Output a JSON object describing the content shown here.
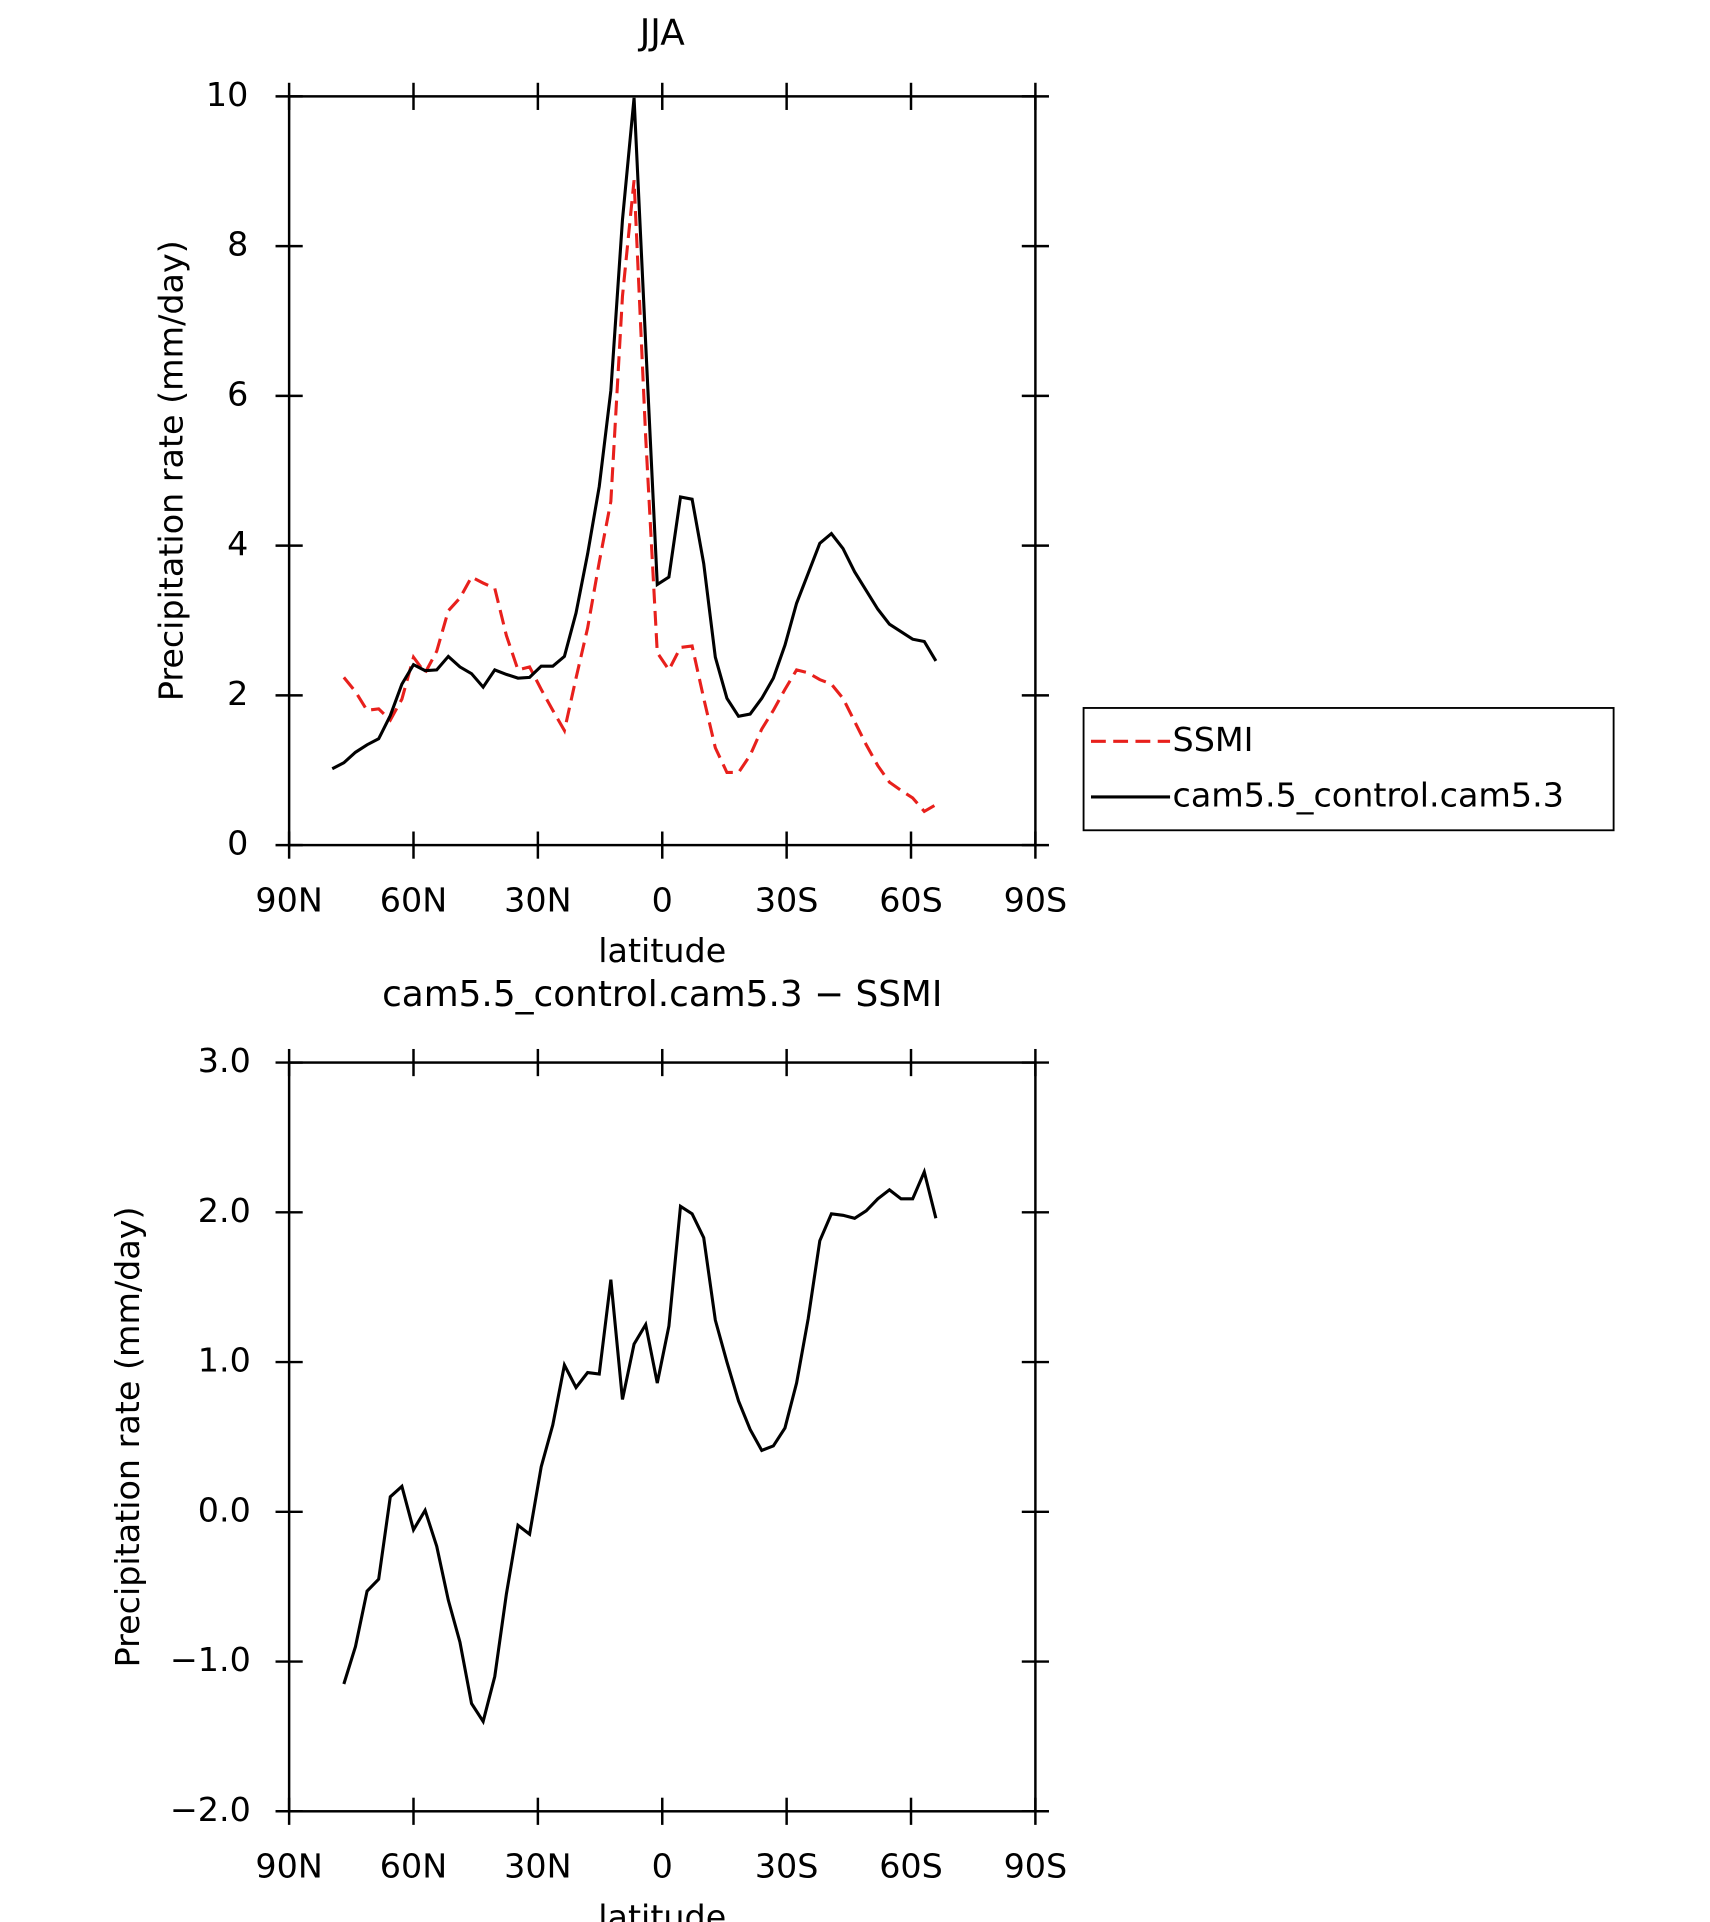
{
  "chart_data": [
    {
      "type": "line",
      "title": "JJA",
      "xlabel": "latitude",
      "ylabel": "Precipitation rate (mm/day)",
      "x": [
        79.6,
        76.8,
        74.0,
        71.2,
        68.4,
        65.6,
        62.8,
        60.0,
        57.2,
        54.4,
        51.6,
        48.8,
        46.0,
        43.2,
        40.4,
        37.6,
        34.8,
        32.0,
        29.2,
        26.4,
        23.6,
        20.8,
        18.0,
        15.2,
        12.4,
        9.6,
        6.8,
        4.0,
        1.2,
        -1.6,
        -4.4,
        -7.2,
        -10.0,
        -12.8,
        -15.6,
        -18.4,
        -21.2,
        -24.0,
        -26.8,
        -29.6,
        -32.4,
        -35.2,
        -38.0,
        -40.8,
        -43.6,
        -46.4,
        -49.2,
        -52.0,
        -54.8,
        -57.6,
        -60.4,
        -63.2,
        -66.0
      ],
      "series": [
        {
          "name": "SSMI",
          "color": "#e8201c",
          "line_style": "dashed",
          "values": [
            null,
            2.24,
            2.05,
            1.8,
            1.82,
            1.67,
            1.95,
            2.51,
            2.3,
            2.59,
            3.13,
            3.3,
            3.58,
            3.5,
            3.43,
            2.8,
            2.34,
            2.38,
            2.08,
            1.8,
            1.53,
            2.23,
            2.9,
            3.78,
            4.59,
            7.33,
            8.88,
            5.45,
            2.57,
            2.34,
            2.64,
            2.66,
            1.96,
            1.3,
            0.97,
            0.97,
            1.2,
            1.55,
            1.8,
            2.08,
            2.34,
            2.3,
            2.21,
            2.15,
            1.96,
            1.65,
            1.34,
            1.06,
            0.84,
            0.73,
            0.63,
            0.45,
            0.54
          ]
        },
        {
          "name": "cam5.5_control.cam5.3",
          "color": "#000000",
          "line_style": "solid",
          "values": [
            1.02,
            1.1,
            1.24,
            1.34,
            1.42,
            1.73,
            2.15,
            2.41,
            2.33,
            2.34,
            2.52,
            2.38,
            2.29,
            2.11,
            2.34,
            2.28,
            2.23,
            2.24,
            2.39,
            2.39,
            2.52,
            3.1,
            3.89,
            4.79,
            6.07,
            8.35,
            9.98,
            6.7,
            3.48,
            3.58,
            4.65,
            4.62,
            3.76,
            2.51,
            1.96,
            1.72,
            1.75,
            1.96,
            2.23,
            2.67,
            3.23,
            3.63,
            4.03,
            4.16,
            3.96,
            3.65,
            3.4,
            3.15,
            2.95,
            2.85,
            2.75,
            2.72,
            2.46
          ]
        }
      ],
      "xlim": [
        90,
        -90
      ],
      "xticks": [
        {
          "value": 90,
          "label": "90N"
        },
        {
          "value": 60,
          "label": "60N"
        },
        {
          "value": 30,
          "label": "30N"
        },
        0,
        {
          "value": -30,
          "label": "30S"
        },
        {
          "value": -60,
          "label": "60S"
        },
        {
          "value": -90,
          "label": "90S"
        }
      ],
      "ylim": [
        0,
        10
      ],
      "yticks": [
        0,
        2,
        4,
        6,
        8,
        10
      ],
      "legend": "right"
    },
    {
      "type": "line",
      "title": "cam5.5_control.cam5.3 − SSMI",
      "xlabel": "latitude",
      "ylabel": "Precipitation rate (mm/day)",
      "x": [
        79.6,
        76.8,
        74.0,
        71.2,
        68.4,
        65.6,
        62.8,
        60.0,
        57.2,
        54.4,
        51.6,
        48.8,
        46.0,
        43.2,
        40.4,
        37.6,
        34.8,
        32.0,
        29.2,
        26.4,
        23.6,
        20.8,
        18.0,
        15.2,
        12.4,
        9.6,
        6.8,
        4.0,
        1.2,
        -1.6,
        -4.4,
        -7.2,
        -10.0,
        -12.8,
        -15.6,
        -18.4,
        -21.2,
        -24.0,
        -26.8,
        -29.6,
        -32.4,
        -35.2,
        -38.0,
        -40.8,
        -43.6,
        -46.4,
        -49.2,
        -52.0,
        -54.8,
        -57.6,
        -60.4,
        -63.2,
        -66.0
      ],
      "values": [
        null,
        -1.15,
        -0.9,
        -0.53,
        -0.45,
        0.1,
        0.17,
        -0.12,
        0.01,
        -0.23,
        -0.59,
        -0.87,
        -1.28,
        -1.4,
        -1.1,
        -0.55,
        -0.09,
        -0.15,
        0.3,
        0.58,
        0.98,
        0.83,
        0.93,
        0.92,
        1.55,
        0.75,
        1.12,
        1.25,
        0.86,
        1.24,
        2.04,
        1.99,
        1.83,
        1.28,
        1.0,
        0.74,
        0.55,
        0.41,
        0.44,
        0.56,
        0.86,
        1.29,
        1.81,
        1.99,
        1.98,
        1.96,
        2.01,
        2.09,
        2.15,
        2.09,
        2.09,
        2.27,
        1.96
      ],
      "color": "#000000",
      "xlim": [
        90,
        -90
      ],
      "xticks": [
        {
          "value": 90,
          "label": "90N"
        },
        {
          "value": 60,
          "label": "60N"
        },
        {
          "value": 30,
          "label": "30N"
        },
        0,
        {
          "value": -30,
          "label": "30S"
        },
        {
          "value": -60,
          "label": "60S"
        },
        {
          "value": -90,
          "label": "90S"
        }
      ],
      "ylim": [
        -2,
        3
      ],
      "yticks": [
        {
          "value": -2,
          "label": "−2.0"
        },
        {
          "value": -1,
          "label": "−1.0"
        },
        {
          "value": 0,
          "label": "0.0"
        },
        {
          "value": 1,
          "label": "1.0"
        },
        {
          "value": 2,
          "label": "2.0"
        },
        {
          "value": 3,
          "label": "3.0"
        }
      ]
    }
  ]
}
